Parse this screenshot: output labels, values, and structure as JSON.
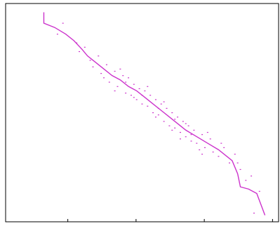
{
  "chart_data": {
    "type": "scatter",
    "title": "",
    "xlabel": "",
    "ylabel": "",
    "x_ticks_count": 4,
    "grid": false,
    "legend": "none",
    "xlim": [
      0,
      1
    ],
    "ylim": [
      0,
      1
    ],
    "colors": {
      "series": "#cc33cc",
      "frame": "#000000",
      "background": "#ffffff"
    },
    "series": [
      {
        "kind": "line",
        "values": [
          [
            0.14,
            0.96
          ],
          [
            0.14,
            0.91
          ],
          [
            0.18,
            0.89
          ],
          [
            0.22,
            0.86
          ],
          [
            0.25,
            0.83
          ],
          [
            0.28,
            0.79
          ],
          [
            0.3,
            0.76
          ],
          [
            0.33,
            0.73
          ],
          [
            0.36,
            0.7
          ],
          [
            0.39,
            0.67
          ],
          [
            0.42,
            0.65
          ],
          [
            0.45,
            0.62
          ],
          [
            0.48,
            0.6
          ],
          [
            0.51,
            0.57
          ],
          [
            0.54,
            0.54
          ],
          [
            0.57,
            0.51
          ],
          [
            0.6,
            0.48
          ],
          [
            0.63,
            0.45
          ],
          [
            0.66,
            0.42
          ],
          [
            0.7,
            0.39
          ],
          [
            0.74,
            0.36
          ],
          [
            0.78,
            0.33
          ],
          [
            0.81,
            0.3
          ],
          [
            0.83,
            0.28
          ],
          [
            0.85,
            0.22
          ],
          [
            0.86,
            0.16
          ],
          [
            0.89,
            0.15
          ],
          [
            0.92,
            0.13
          ],
          [
            0.95,
            0.03
          ]
        ]
      },
      {
        "kind": "points",
        "values": [
          [
            0.21,
            0.91
          ],
          [
            0.19,
            0.86
          ],
          [
            0.26,
            0.82
          ],
          [
            0.27,
            0.78
          ],
          [
            0.29,
            0.8
          ],
          [
            0.31,
            0.74
          ],
          [
            0.32,
            0.71
          ],
          [
            0.34,
            0.76
          ],
          [
            0.35,
            0.68
          ],
          [
            0.37,
            0.72
          ],
          [
            0.38,
            0.64
          ],
          [
            0.4,
            0.69
          ],
          [
            0.41,
            0.62
          ],
          [
            0.43,
            0.67
          ],
          [
            0.44,
            0.59
          ],
          [
            0.45,
            0.66
          ],
          [
            0.46,
            0.58
          ],
          [
            0.47,
            0.63
          ],
          [
            0.48,
            0.56
          ],
          [
            0.49,
            0.61
          ],
          [
            0.5,
            0.54
          ],
          [
            0.51,
            0.6
          ],
          [
            0.52,
            0.53
          ],
          [
            0.53,
            0.58
          ],
          [
            0.54,
            0.5
          ],
          [
            0.55,
            0.56
          ],
          [
            0.56,
            0.49
          ],
          [
            0.57,
            0.54
          ],
          [
            0.58,
            0.46
          ],
          [
            0.59,
            0.52
          ],
          [
            0.6,
            0.44
          ],
          [
            0.61,
            0.5
          ],
          [
            0.62,
            0.43
          ],
          [
            0.63,
            0.48
          ],
          [
            0.64,
            0.41
          ],
          [
            0.65,
            0.46
          ],
          [
            0.66,
            0.39
          ],
          [
            0.67,
            0.44
          ],
          [
            0.68,
            0.37
          ],
          [
            0.69,
            0.42
          ],
          [
            0.7,
            0.36
          ],
          [
            0.72,
            0.4
          ],
          [
            0.73,
            0.34
          ],
          [
            0.75,
            0.38
          ],
          [
            0.76,
            0.32
          ],
          [
            0.78,
            0.3
          ],
          [
            0.8,
            0.34
          ],
          [
            0.82,
            0.27
          ],
          [
            0.84,
            0.31
          ],
          [
            0.86,
            0.24
          ],
          [
            0.88,
            0.19
          ],
          [
            0.9,
            0.21
          ],
          [
            0.93,
            0.14
          ],
          [
            0.91,
            0.04
          ],
          [
            0.36,
            0.66
          ],
          [
            0.42,
            0.7
          ],
          [
            0.47,
            0.57
          ],
          [
            0.52,
            0.62
          ],
          [
            0.55,
            0.48
          ],
          [
            0.58,
            0.55
          ],
          [
            0.62,
            0.47
          ],
          [
            0.66,
            0.45
          ],
          [
            0.71,
            0.33
          ],
          [
            0.74,
            0.41
          ],
          [
            0.79,
            0.36
          ],
          [
            0.85,
            0.27
          ],
          [
            0.4,
            0.6
          ],
          [
            0.44,
            0.64
          ],
          [
            0.5,
            0.58
          ],
          [
            0.56,
            0.52
          ],
          [
            0.61,
            0.42
          ],
          [
            0.64,
            0.38
          ],
          [
            0.68,
            0.4
          ],
          [
            0.72,
            0.31
          ]
        ]
      }
    ]
  }
}
